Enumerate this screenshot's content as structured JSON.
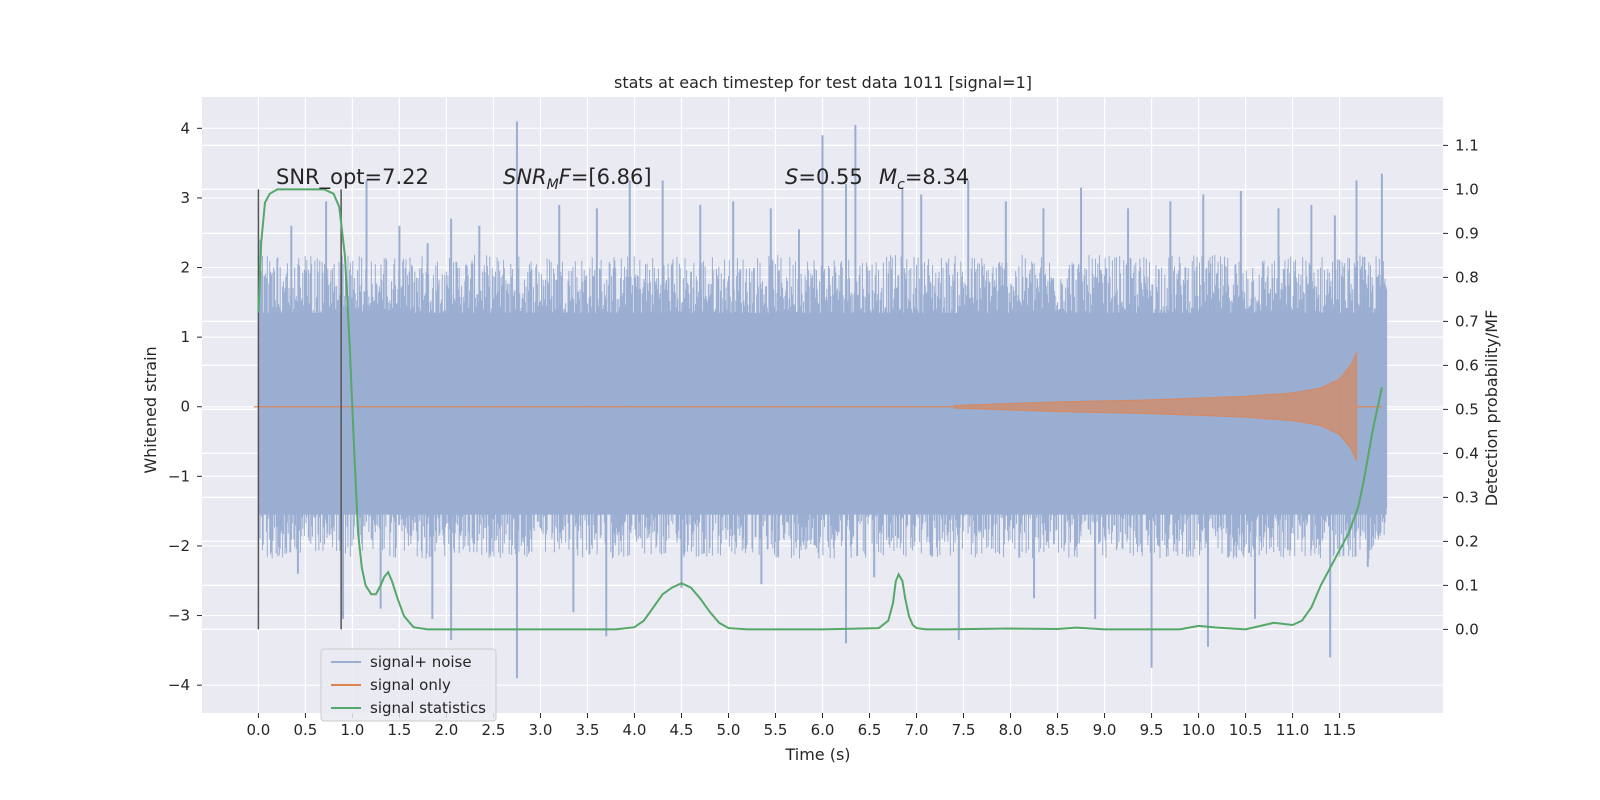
{
  "chart_data": {
    "type": "line",
    "title": "stats at each timestep for test data 1011 [signal=1]",
    "xlabel": "Time (s)",
    "ylabel_left": "Whitened strain",
    "ylabel_right": "Detection probability/MF",
    "xlim": [
      -0.6,
      12.6
    ],
    "ylim_left": [
      -4.4,
      4.45
    ],
    "ylim_right": [
      -0.19,
      1.21
    ],
    "x_ticks": [
      "0.0",
      "0.5",
      "1.0",
      "1.5",
      "2.0",
      "2.5",
      "3.0",
      "3.5",
      "4.0",
      "4.5",
      "5.0",
      "5.5",
      "6.0",
      "6.5",
      "7.0",
      "7.5",
      "8.0",
      "8.5",
      "9.0",
      "9.5",
      "10.0",
      "10.5",
      "11.0",
      "11.5"
    ],
    "y_ticks_left": [
      "4",
      "3",
      "2",
      "1",
      "0",
      "−1",
      "−2",
      "−3",
      "−4"
    ],
    "y_ticks_right": [
      "1.1",
      "1.0",
      "0.9",
      "0.8",
      "0.7",
      "0.6",
      "0.5",
      "0.4",
      "0.3",
      "0.2",
      "0.1",
      "0.0"
    ],
    "grid": true,
    "legend_position": "lower-left",
    "annotations": {
      "snr_opt": "SNR_opt=7.22",
      "snr_mf_base": "SNR",
      "snr_mf_sub": "M",
      "snr_mf_rest": "F=[6.86]",
      "s_base": "S",
      "s_rest": "=0.55",
      "mc_base": "M",
      "mc_sub": "c",
      "mc_rest": "=8.34"
    },
    "vertical_markers_x": [
      0.0,
      0.88
    ],
    "series": [
      {
        "name": "signal+ noise",
        "color": "#9aaed2",
        "band_envelope": {
          "t": [
            0,
            12
          ],
          "typical_upper": 2.1,
          "typical_lower": -2.1,
          "core_upper": 1.35,
          "core_lower": -1.55
        },
        "peaks": [
          [
            0.02,
            2.4
          ],
          [
            0.35,
            2.6
          ],
          [
            0.72,
            2.95
          ],
          [
            1.15,
            3.25
          ],
          [
            1.5,
            2.6
          ],
          [
            1.8,
            2.35
          ],
          [
            2.05,
            2.7
          ],
          [
            2.35,
            2.6
          ],
          [
            2.75,
            4.1
          ],
          [
            3.2,
            2.9
          ],
          [
            3.6,
            2.85
          ],
          [
            3.95,
            3.25
          ],
          [
            4.3,
            3.25
          ],
          [
            4.7,
            2.9
          ],
          [
            5.05,
            2.95
          ],
          [
            5.45,
            2.85
          ],
          [
            5.75,
            2.55
          ],
          [
            6.0,
            3.9
          ],
          [
            6.25,
            3.2
          ],
          [
            6.35,
            4.05
          ],
          [
            6.85,
            3.15
          ],
          [
            7.05,
            3.05
          ],
          [
            7.55,
            3.25
          ],
          [
            7.95,
            2.95
          ],
          [
            8.35,
            2.85
          ],
          [
            8.75,
            3.15
          ],
          [
            9.25,
            2.85
          ],
          [
            9.7,
            2.95
          ],
          [
            10.05,
            3.05
          ],
          [
            10.45,
            3.1
          ],
          [
            10.85,
            2.85
          ],
          [
            11.2,
            2.9
          ],
          [
            11.45,
            2.75
          ],
          [
            11.68,
            3.25
          ],
          [
            11.95,
            3.35
          ]
        ],
        "troughs": [
          [
            0.42,
            -2.4
          ],
          [
            0.9,
            -3.05
          ],
          [
            1.3,
            -2.9
          ],
          [
            1.85,
            -3.05
          ],
          [
            2.05,
            -3.35
          ],
          [
            2.75,
            -3.9
          ],
          [
            3.35,
            -2.95
          ],
          [
            3.7,
            -3.3
          ],
          [
            4.5,
            -2.6
          ],
          [
            5.35,
            -2.55
          ],
          [
            6.25,
            -3.4
          ],
          [
            6.55,
            -2.45
          ],
          [
            7.45,
            -3.35
          ],
          [
            8.25,
            -2.75
          ],
          [
            8.9,
            -3.05
          ],
          [
            9.5,
            -3.75
          ],
          [
            10.1,
            -3.45
          ],
          [
            10.6,
            -3.05
          ],
          [
            11.4,
            -3.6
          ],
          [
            11.8,
            -2.3
          ]
        ]
      },
      {
        "name": "signal only",
        "color": "#dd8452",
        "amplitude_envelope": {
          "t": [
            7.4,
            8.5,
            9.5,
            10.5,
            11.0,
            11.3,
            11.5,
            11.62,
            11.68
          ],
          "a": [
            0.02,
            0.07,
            0.1,
            0.15,
            0.2,
            0.27,
            0.4,
            0.6,
            0.78
          ]
        }
      },
      {
        "name": "signal statistics",
        "color": "#55a868",
        "axis": "right",
        "x": [
          0.0,
          0.03,
          0.07,
          0.12,
          0.2,
          0.3,
          0.5,
          0.7,
          0.8,
          0.86,
          0.92,
          0.97,
          1.02,
          1.06,
          1.1,
          1.14,
          1.2,
          1.25,
          1.3,
          1.34,
          1.38,
          1.42,
          1.48,
          1.55,
          1.65,
          1.8,
          2.0,
          3.0,
          3.8,
          4.0,
          4.1,
          4.2,
          4.3,
          4.4,
          4.5,
          4.6,
          4.7,
          4.8,
          4.9,
          5.0,
          5.2,
          6.0,
          6.6,
          6.7,
          6.75,
          6.78,
          6.81,
          6.85,
          6.88,
          6.92,
          6.96,
          7.0,
          7.1,
          7.3,
          8.0,
          8.5,
          8.7,
          9.0,
          9.5,
          9.8,
          10.0,
          10.2,
          10.5,
          10.8,
          11.0,
          11.1,
          11.2,
          11.3,
          11.4,
          11.5,
          11.6,
          11.7,
          11.75,
          11.8,
          11.85,
          11.9,
          11.95
        ],
        "y": [
          0.72,
          0.88,
          0.97,
          0.99,
          1.0,
          1.0,
          1.0,
          1.0,
          0.99,
          0.96,
          0.85,
          0.65,
          0.4,
          0.22,
          0.14,
          0.1,
          0.08,
          0.08,
          0.1,
          0.12,
          0.13,
          0.11,
          0.07,
          0.03,
          0.005,
          0.0,
          0.0,
          0.0,
          0.0,
          0.005,
          0.02,
          0.05,
          0.08,
          0.095,
          0.105,
          0.095,
          0.07,
          0.04,
          0.015,
          0.003,
          0.0,
          0.0,
          0.003,
          0.02,
          0.06,
          0.11,
          0.125,
          0.11,
          0.07,
          0.03,
          0.01,
          0.003,
          0.0,
          0.0,
          0.002,
          0.001,
          0.004,
          0.0,
          0.0,
          0.0,
          0.008,
          0.004,
          0.0,
          0.015,
          0.01,
          0.02,
          0.05,
          0.1,
          0.14,
          0.18,
          0.22,
          0.28,
          0.33,
          0.39,
          0.45,
          0.5,
          0.55
        ]
      }
    ]
  }
}
